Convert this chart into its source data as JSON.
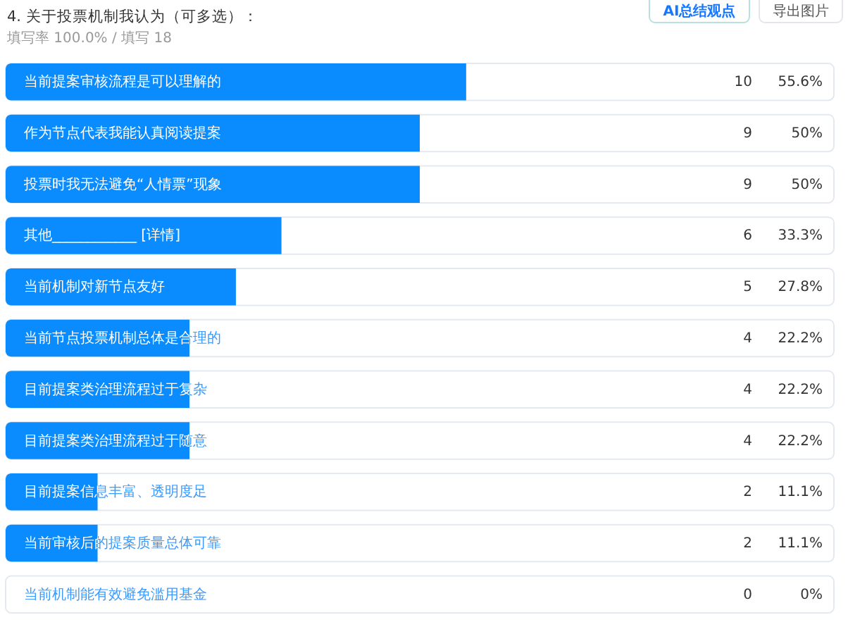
{
  "chart_data": {
    "type": "bar",
    "orientation": "horizontal",
    "title": "4. 关于投票机制我认为（可多选）：",
    "subtitle": "填写率 100.0% / 填写 18",
    "categories": [
      "当前提案审核流程是可以理解的",
      "作为节点代表我能认真阅读提案",
      "投票时我无法避免“人情票”现象",
      "其他____________ [详情]",
      "当前机制对新节点友好",
      "当前节点投票机制总体是合理的",
      "目前提案类治理流程过于复杂",
      "目前提案类治理流程过于随意",
      "目前提案信息丰富、透明度足",
      "当前审核后的提案质量总体可靠",
      "当前机制能有效避免滥用基金"
    ],
    "values": [
      55.6,
      50,
      50,
      33.3,
      27.8,
      22.2,
      22.2,
      22.2,
      11.1,
      11.1,
      0
    ],
    "value_labels": [
      "55.6%",
      "50%",
      "50%",
      "33.3%",
      "27.8%",
      "22.2%",
      "22.2%",
      "22.2%",
      "11.1%",
      "11.1%",
      "0%"
    ],
    "color": "#0a8cff",
    "xlim": [
      0,
      100
    ],
    "annotations": [
      "AI总结观点",
      "导出图片",
      "10",
      "9",
      "9",
      "6",
      "5",
      "4",
      "4",
      "4",
      "2",
      "2",
      "0"
    ]
  }
}
